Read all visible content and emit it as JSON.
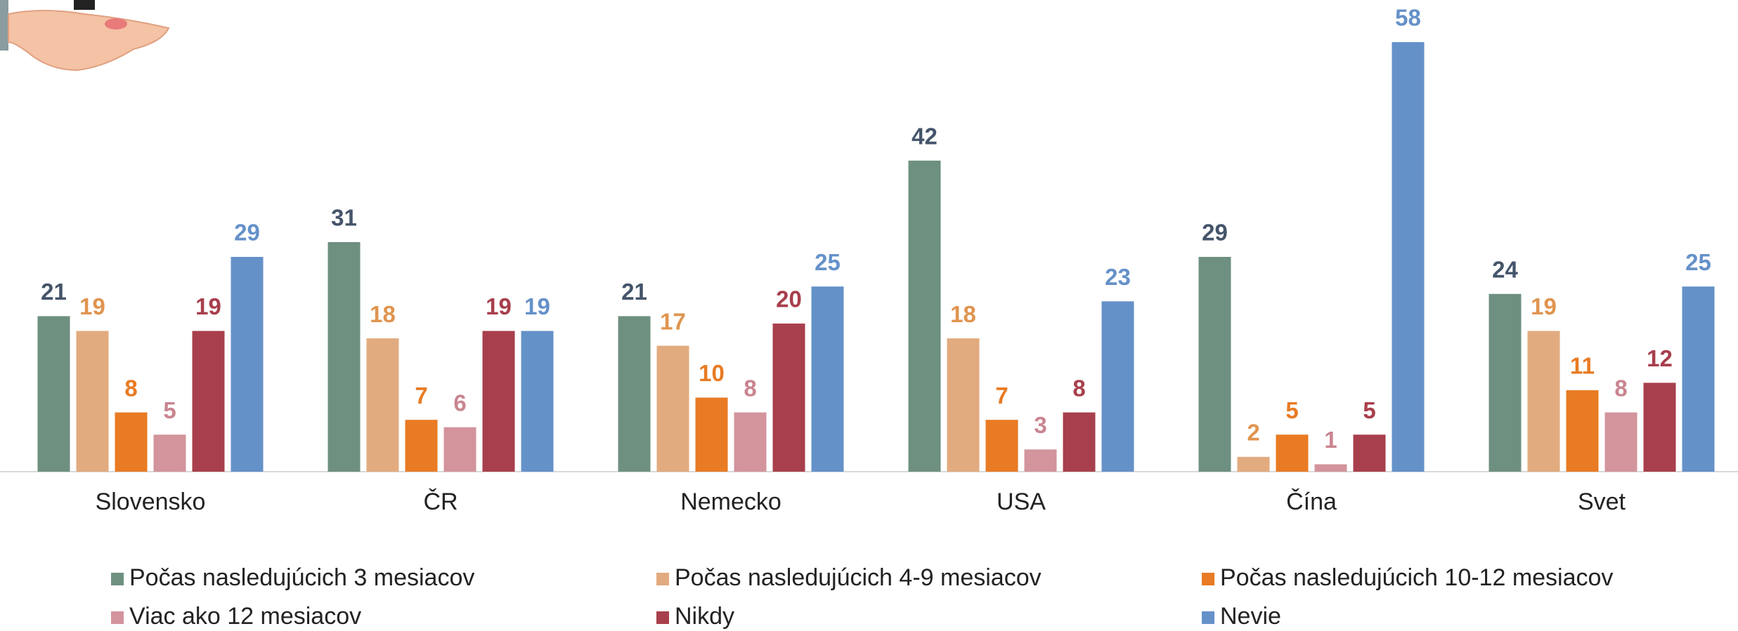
{
  "chart_data": {
    "type": "bar",
    "categories": [
      "Slovensko",
      "ČR",
      "Nemecko",
      "USA",
      "Čína",
      "Svet"
    ],
    "series": [
      {
        "name": "Počas nasledujúcich 3 mesiacov",
        "color": "#6e9080",
        "label_color": "#44546a",
        "values": [
          21,
          31,
          21,
          42,
          29,
          24
        ]
      },
      {
        "name": "Počas nasledujúcich 4-9 mesiacov",
        "color": "#e2ab7f",
        "label_color": "#e0944f",
        "values": [
          19,
          18,
          17,
          18,
          2,
          19
        ]
      },
      {
        "name": "Počas nasledujúcich 10-12 mesiacov",
        "color": "#e87b23",
        "label_color": "#e87b23",
        "values": [
          8,
          7,
          10,
          7,
          5,
          11
        ]
      },
      {
        "name": "Viac ako 12 mesiacov",
        "color": "#d3949c",
        "label_color": "#c98590",
        "values": [
          5,
          6,
          8,
          3,
          1,
          8
        ]
      },
      {
        "name": "Nikdy",
        "color": "#a83f4c",
        "label_color": "#a83f4c",
        "values": [
          19,
          19,
          20,
          8,
          5,
          12
        ]
      },
      {
        "name": "Nevie",
        "color": "#6591c9",
        "label_color": "#6591c9",
        "values": [
          29,
          19,
          25,
          23,
          58,
          25
        ]
      }
    ]
  }
}
